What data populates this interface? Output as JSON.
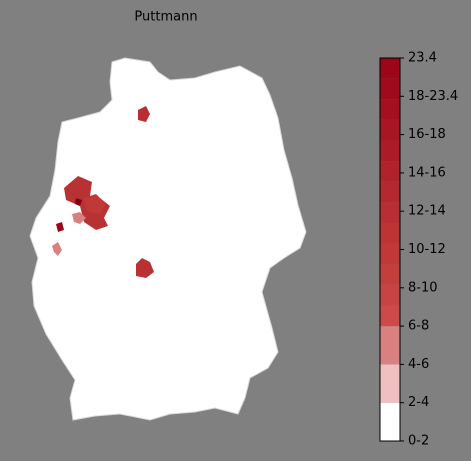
{
  "title": "Puttmann",
  "colorbar": {
    "labels": [
      "0-2",
      "2-4",
      "4-6",
      "6-8",
      "8-10",
      "10-12",
      "12-14",
      "14-16",
      "16-18",
      "18-23.4",
      "23.4"
    ],
    "colors": [
      "#ffffff",
      "#f0c0c0",
      "#d98080",
      "#cc4a4a",
      "#c84444",
      "#c43e3e",
      "#c03838",
      "#bc3434",
      "#b82e34",
      "#b42830",
      "#b0222c",
      "#ac1c28",
      "#a81624",
      "#a41020",
      "#a00a1c",
      "#9c0618"
    ]
  }
}
